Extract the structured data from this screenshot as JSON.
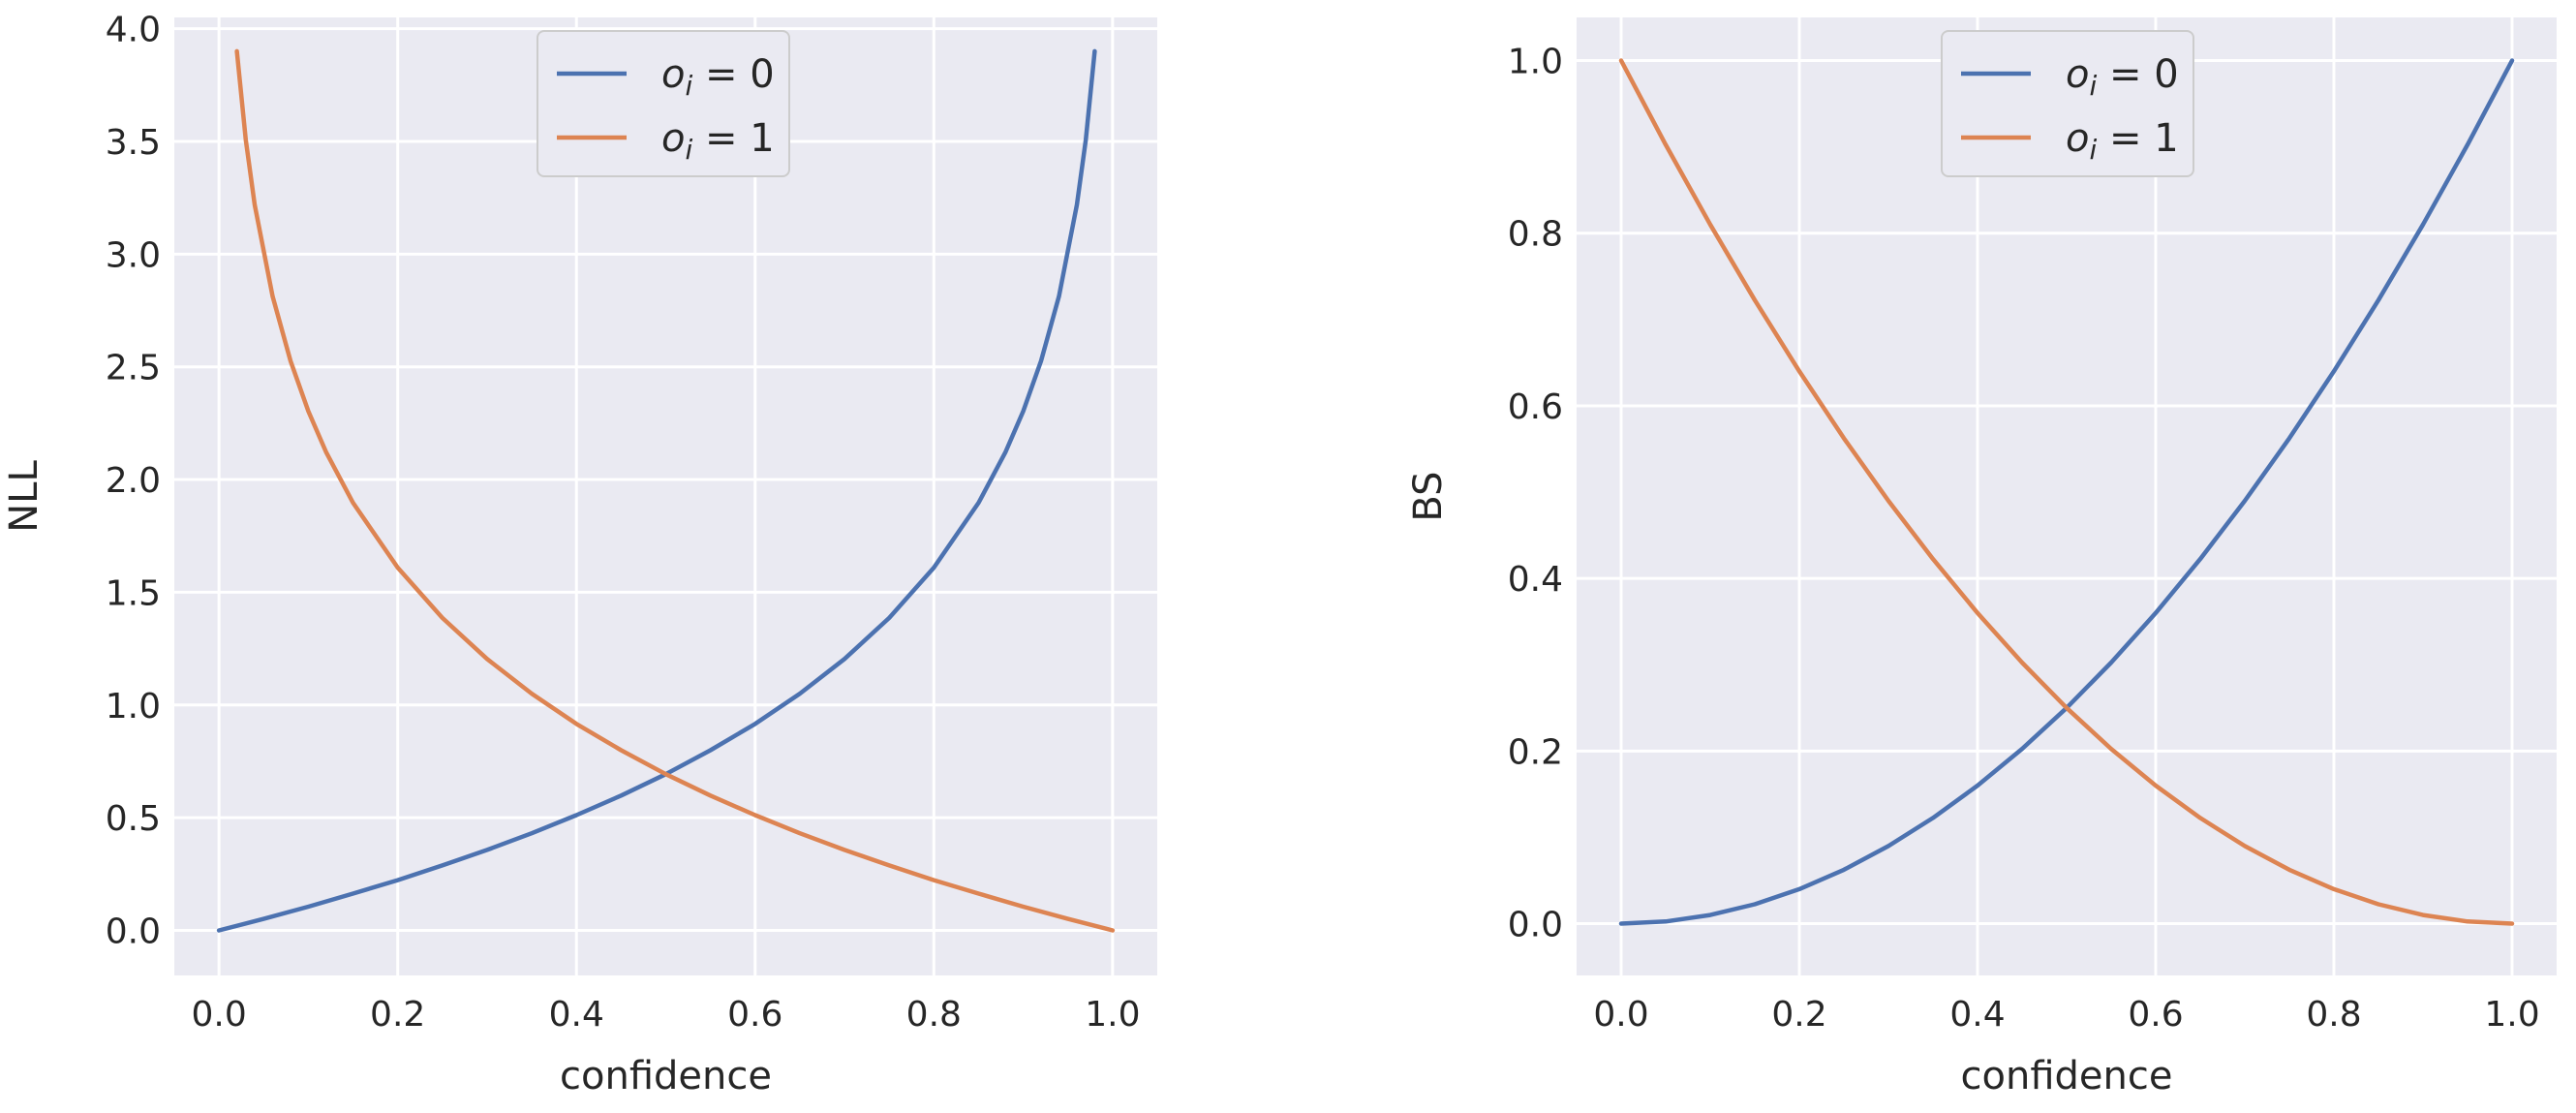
{
  "chart_data": [
    {
      "type": "line",
      "title": "",
      "xlabel": "confidence",
      "ylabel": "NLL",
      "xlim": [
        -0.05,
        1.05
      ],
      "ylim": [
        -0.2,
        4.05
      ],
      "xticks": [
        "0.0",
        "0.2",
        "0.4",
        "0.6",
        "0.8",
        "1.0"
      ],
      "yticks": [
        "0.0",
        "0.5",
        "1.0",
        "1.5",
        "2.0",
        "2.5",
        "3.0",
        "3.5",
        "4.0"
      ],
      "grid": true,
      "legend_position": "top-center",
      "series": [
        {
          "name": "o_i = 0",
          "label_var": "o",
          "label_sub": "i",
          "label_rest": " = 0",
          "color": "#4c72b0",
          "x": [
            0.0,
            0.05,
            0.1,
            0.15,
            0.2,
            0.25,
            0.3,
            0.35,
            0.4,
            0.45,
            0.5,
            0.55,
            0.6,
            0.65,
            0.7,
            0.75,
            0.8,
            0.85,
            0.88,
            0.9,
            0.92,
            0.94,
            0.96,
            0.97,
            0.98
          ],
          "y": [
            0.0,
            0.051,
            0.105,
            0.163,
            0.223,
            0.288,
            0.357,
            0.431,
            0.511,
            0.598,
            0.693,
            0.799,
            0.916,
            1.05,
            1.204,
            1.386,
            1.609,
            1.897,
            2.12,
            2.303,
            2.526,
            2.813,
            3.219,
            3.507,
            3.9
          ]
        },
        {
          "name": "o_i = 1",
          "label_var": "o",
          "label_sub": "i",
          "label_rest": " = 1",
          "color": "#dd8452",
          "x": [
            0.02,
            0.03,
            0.04,
            0.06,
            0.08,
            0.1,
            0.12,
            0.15,
            0.2,
            0.25,
            0.3,
            0.35,
            0.4,
            0.45,
            0.5,
            0.55,
            0.6,
            0.65,
            0.7,
            0.75,
            0.8,
            0.85,
            0.9,
            0.95,
            1.0
          ],
          "y": [
            3.9,
            3.507,
            3.219,
            2.813,
            2.526,
            2.303,
            2.12,
            1.897,
            1.609,
            1.386,
            1.204,
            1.05,
            0.916,
            0.799,
            0.693,
            0.598,
            0.511,
            0.431,
            0.357,
            0.288,
            0.223,
            0.163,
            0.105,
            0.051,
            0.0
          ]
        }
      ]
    },
    {
      "type": "line",
      "title": "",
      "xlabel": "confidence",
      "ylabel": "BS",
      "xlim": [
        -0.05,
        1.05
      ],
      "ylim": [
        -0.06,
        1.05
      ],
      "xticks": [
        "0.0",
        "0.2",
        "0.4",
        "0.6",
        "0.8",
        "1.0"
      ],
      "yticks": [
        "0.0",
        "0.2",
        "0.4",
        "0.6",
        "0.8",
        "1.0"
      ],
      "grid": true,
      "legend_position": "top-center",
      "series": [
        {
          "name": "o_i = 0",
          "label_var": "o",
          "label_sub": "i",
          "label_rest": " = 0",
          "color": "#4c72b0",
          "x": [
            0.0,
            0.05,
            0.1,
            0.15,
            0.2,
            0.25,
            0.3,
            0.35,
            0.4,
            0.45,
            0.5,
            0.55,
            0.6,
            0.65,
            0.7,
            0.75,
            0.8,
            0.85,
            0.9,
            0.95,
            1.0
          ],
          "y": [
            0.0,
            0.0025,
            0.01,
            0.0225,
            0.04,
            0.0625,
            0.09,
            0.1225,
            0.16,
            0.2025,
            0.25,
            0.3025,
            0.36,
            0.4225,
            0.49,
            0.5625,
            0.64,
            0.7225,
            0.81,
            0.9025,
            1.0
          ]
        },
        {
          "name": "o_i = 1",
          "label_var": "o",
          "label_sub": "i",
          "label_rest": " = 1",
          "color": "#dd8452",
          "x": [
            0.0,
            0.05,
            0.1,
            0.15,
            0.2,
            0.25,
            0.3,
            0.35,
            0.4,
            0.45,
            0.5,
            0.55,
            0.6,
            0.65,
            0.7,
            0.75,
            0.8,
            0.85,
            0.9,
            0.95,
            1.0
          ],
          "y": [
            1.0,
            0.9025,
            0.81,
            0.7225,
            0.64,
            0.5625,
            0.49,
            0.4225,
            0.36,
            0.3025,
            0.25,
            0.2025,
            0.16,
            0.1225,
            0.09,
            0.0625,
            0.04,
            0.0225,
            0.01,
            0.0025,
            0.0
          ]
        }
      ]
    }
  ]
}
